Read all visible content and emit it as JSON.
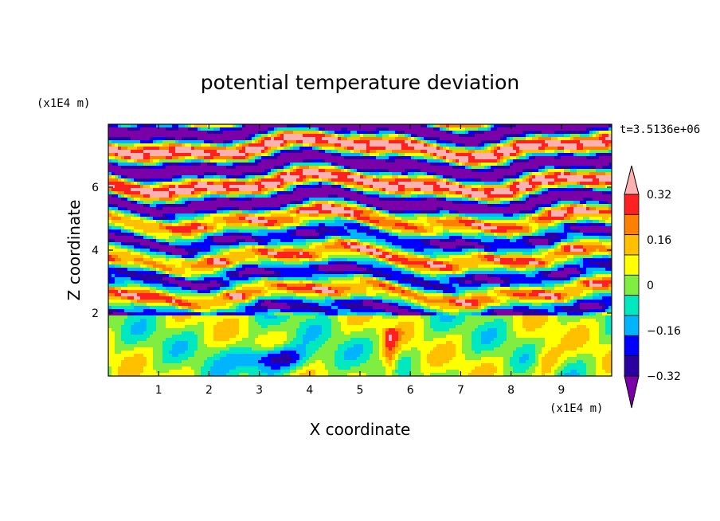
{
  "chart_data": {
    "type": "heatmap",
    "title": "potential temperature deviation",
    "xlabel": "X coordinate",
    "ylabel": "Z coordinate",
    "x_unit": "(x1E4 m)",
    "y_unit": "(x1E4 m)",
    "time_label": "t=3.5136e+06",
    "xlim": [
      0,
      10
    ],
    "ylim": [
      0,
      8
    ],
    "x_ticks": [
      1,
      2,
      3,
      4,
      5,
      6,
      7,
      8,
      9
    ],
    "y_ticks": [
      2,
      4,
      6
    ],
    "colorbar": {
      "levels": [
        -0.4,
        -0.32,
        -0.24,
        -0.16,
        -0.08,
        0,
        0.08,
        0.16,
        0.24,
        0.32,
        0.4
      ],
      "labels": [
        "0.32",
        "0.16",
        "0",
        "−0.16",
        "−0.32"
      ],
      "label_values": [
        0.32,
        0.16,
        0,
        -0.16,
        -0.32
      ],
      "colors": [
        "#7a00a8",
        "#2a00a0",
        "#0000ff",
        "#00b4ff",
        "#00e8c0",
        "#80ee40",
        "#ffff00",
        "#ffc000",
        "#ff8000",
        "#ff2020",
        "#ffb0b0"
      ],
      "extend": "both"
    },
    "grid": false
  }
}
